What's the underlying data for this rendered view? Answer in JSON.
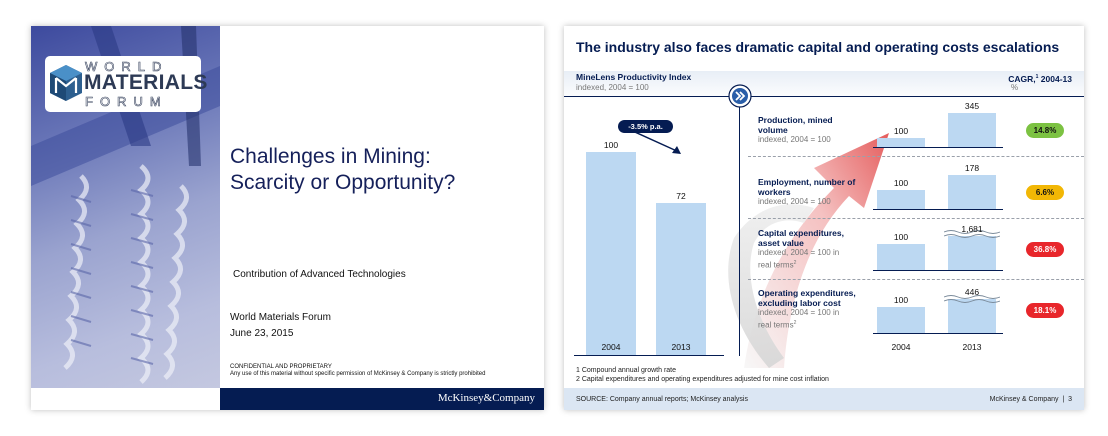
{
  "slide1": {
    "logo": {
      "top": "WORLD",
      "middle": "MATERIALS",
      "bottom": "FORUM"
    },
    "title_line1": "Challenges in Mining:",
    "title_line2": "Scarcity or Opportunity?",
    "subtitle": "Contribution of Advanced Technologies",
    "forum": "World Materials Forum",
    "date": "June 23, 2015",
    "confidential": "CONFIDENTIAL AND PROPRIETARY",
    "disclaimer": "Any use of this material without specific permission of McKinsey & Company is strictly prohibited",
    "brand": "McKinsey&Company"
  },
  "slide2": {
    "headline": "The industry also faces dramatic capital and operating costs escalations",
    "left_title": "MineLens Productivity Index",
    "left_sub": "indexed, 2004 = 100",
    "cagr_title": "CAGR,",
    "cagr_sup": "1",
    "cagr_years": " 2004-13",
    "cagr_unit": "%",
    "arrow_label": "-3.5% p.a.",
    "colors": {
      "navy": "#051c52",
      "bar": "#bcd8f2",
      "green": "#7cc242",
      "yellow": "#f2b705",
      "red": "#e8262b"
    },
    "chart_data": [
      {
        "type": "bar",
        "title": "MineLens Productivity Index",
        "subtitle": "indexed, 2004 = 100",
        "categories": [
          "2004",
          "2013"
        ],
        "values": [
          100,
          72
        ],
        "annotation": "-3.5% p.a."
      },
      {
        "type": "bar",
        "title": "Production, mined volume",
        "subtitle": "indexed, 2004 = 100",
        "categories": [
          "2004",
          "2013"
        ],
        "values": [
          100,
          345
        ],
        "cagr": "14.8%",
        "broken_axis": false
      },
      {
        "type": "bar",
        "title": "Employment, number of workers",
        "subtitle": "indexed, 2004 = 100",
        "categories": [
          "2004",
          "2013"
        ],
        "values": [
          100,
          178
        ],
        "cagr": "6.6%",
        "broken_axis": false
      },
      {
        "type": "bar",
        "title": "Capital expenditures, asset value",
        "subtitle": "indexed, 2004 = 100 in real terms",
        "categories": [
          "2004",
          "2013"
        ],
        "values": [
          100,
          1681
        ],
        "cagr": "36.8%",
        "broken_axis": true
      },
      {
        "type": "bar",
        "title": "Operating expenditures, excluding labor cost",
        "subtitle": "indexed, 2004 = 100 in real terms",
        "categories": [
          "2004",
          "2013"
        ],
        "values": [
          100,
          446
        ],
        "cagr": "18.1%",
        "broken_axis": true
      }
    ],
    "rows": [
      {
        "title1": "Production, mined",
        "title2": "volume",
        "sub1": "indexed, 2004 = 100",
        "sub2": "",
        "sup": "",
        "v1": "100",
        "v2": "345",
        "cagr": "14.8%",
        "pill": "green"
      },
      {
        "title1": "Employment, number of",
        "title2": "workers",
        "sub1": "indexed, 2004 = 100",
        "sub2": "",
        "sup": "",
        "v1": "100",
        "v2": "178",
        "cagr": "6.6%",
        "pill": "yellow"
      },
      {
        "title1": "Capital expenditures,",
        "title2": "asset value",
        "sub1": "indexed, 2004 = 100 in",
        "sub2": "real terms",
        "sup": "2",
        "v1": "100",
        "v2": "1,681",
        "cagr": "36.8%",
        "pill": "red"
      },
      {
        "title1": "Operating expenditures,",
        "title2": "excluding labor cost",
        "sub1": "indexed, 2004 = 100 in",
        "sub2": "real terms",
        "sup": "2",
        "v1": "100",
        "v2": "446",
        "cagr": "18.1%",
        "pill": "red"
      }
    ],
    "left_values": {
      "v1": "100",
      "v2": "72"
    },
    "years": {
      "y1": "2004",
      "y2": "2013"
    },
    "footnote1": "1 Compound annual growth rate",
    "footnote2": "2 Capital expenditures and operating expenditures adjusted for mine cost inflation",
    "source": "SOURCE: Company annual reports; McKinsey analysis",
    "brand": "McKinsey & Company",
    "separator": "|",
    "page": "3"
  }
}
